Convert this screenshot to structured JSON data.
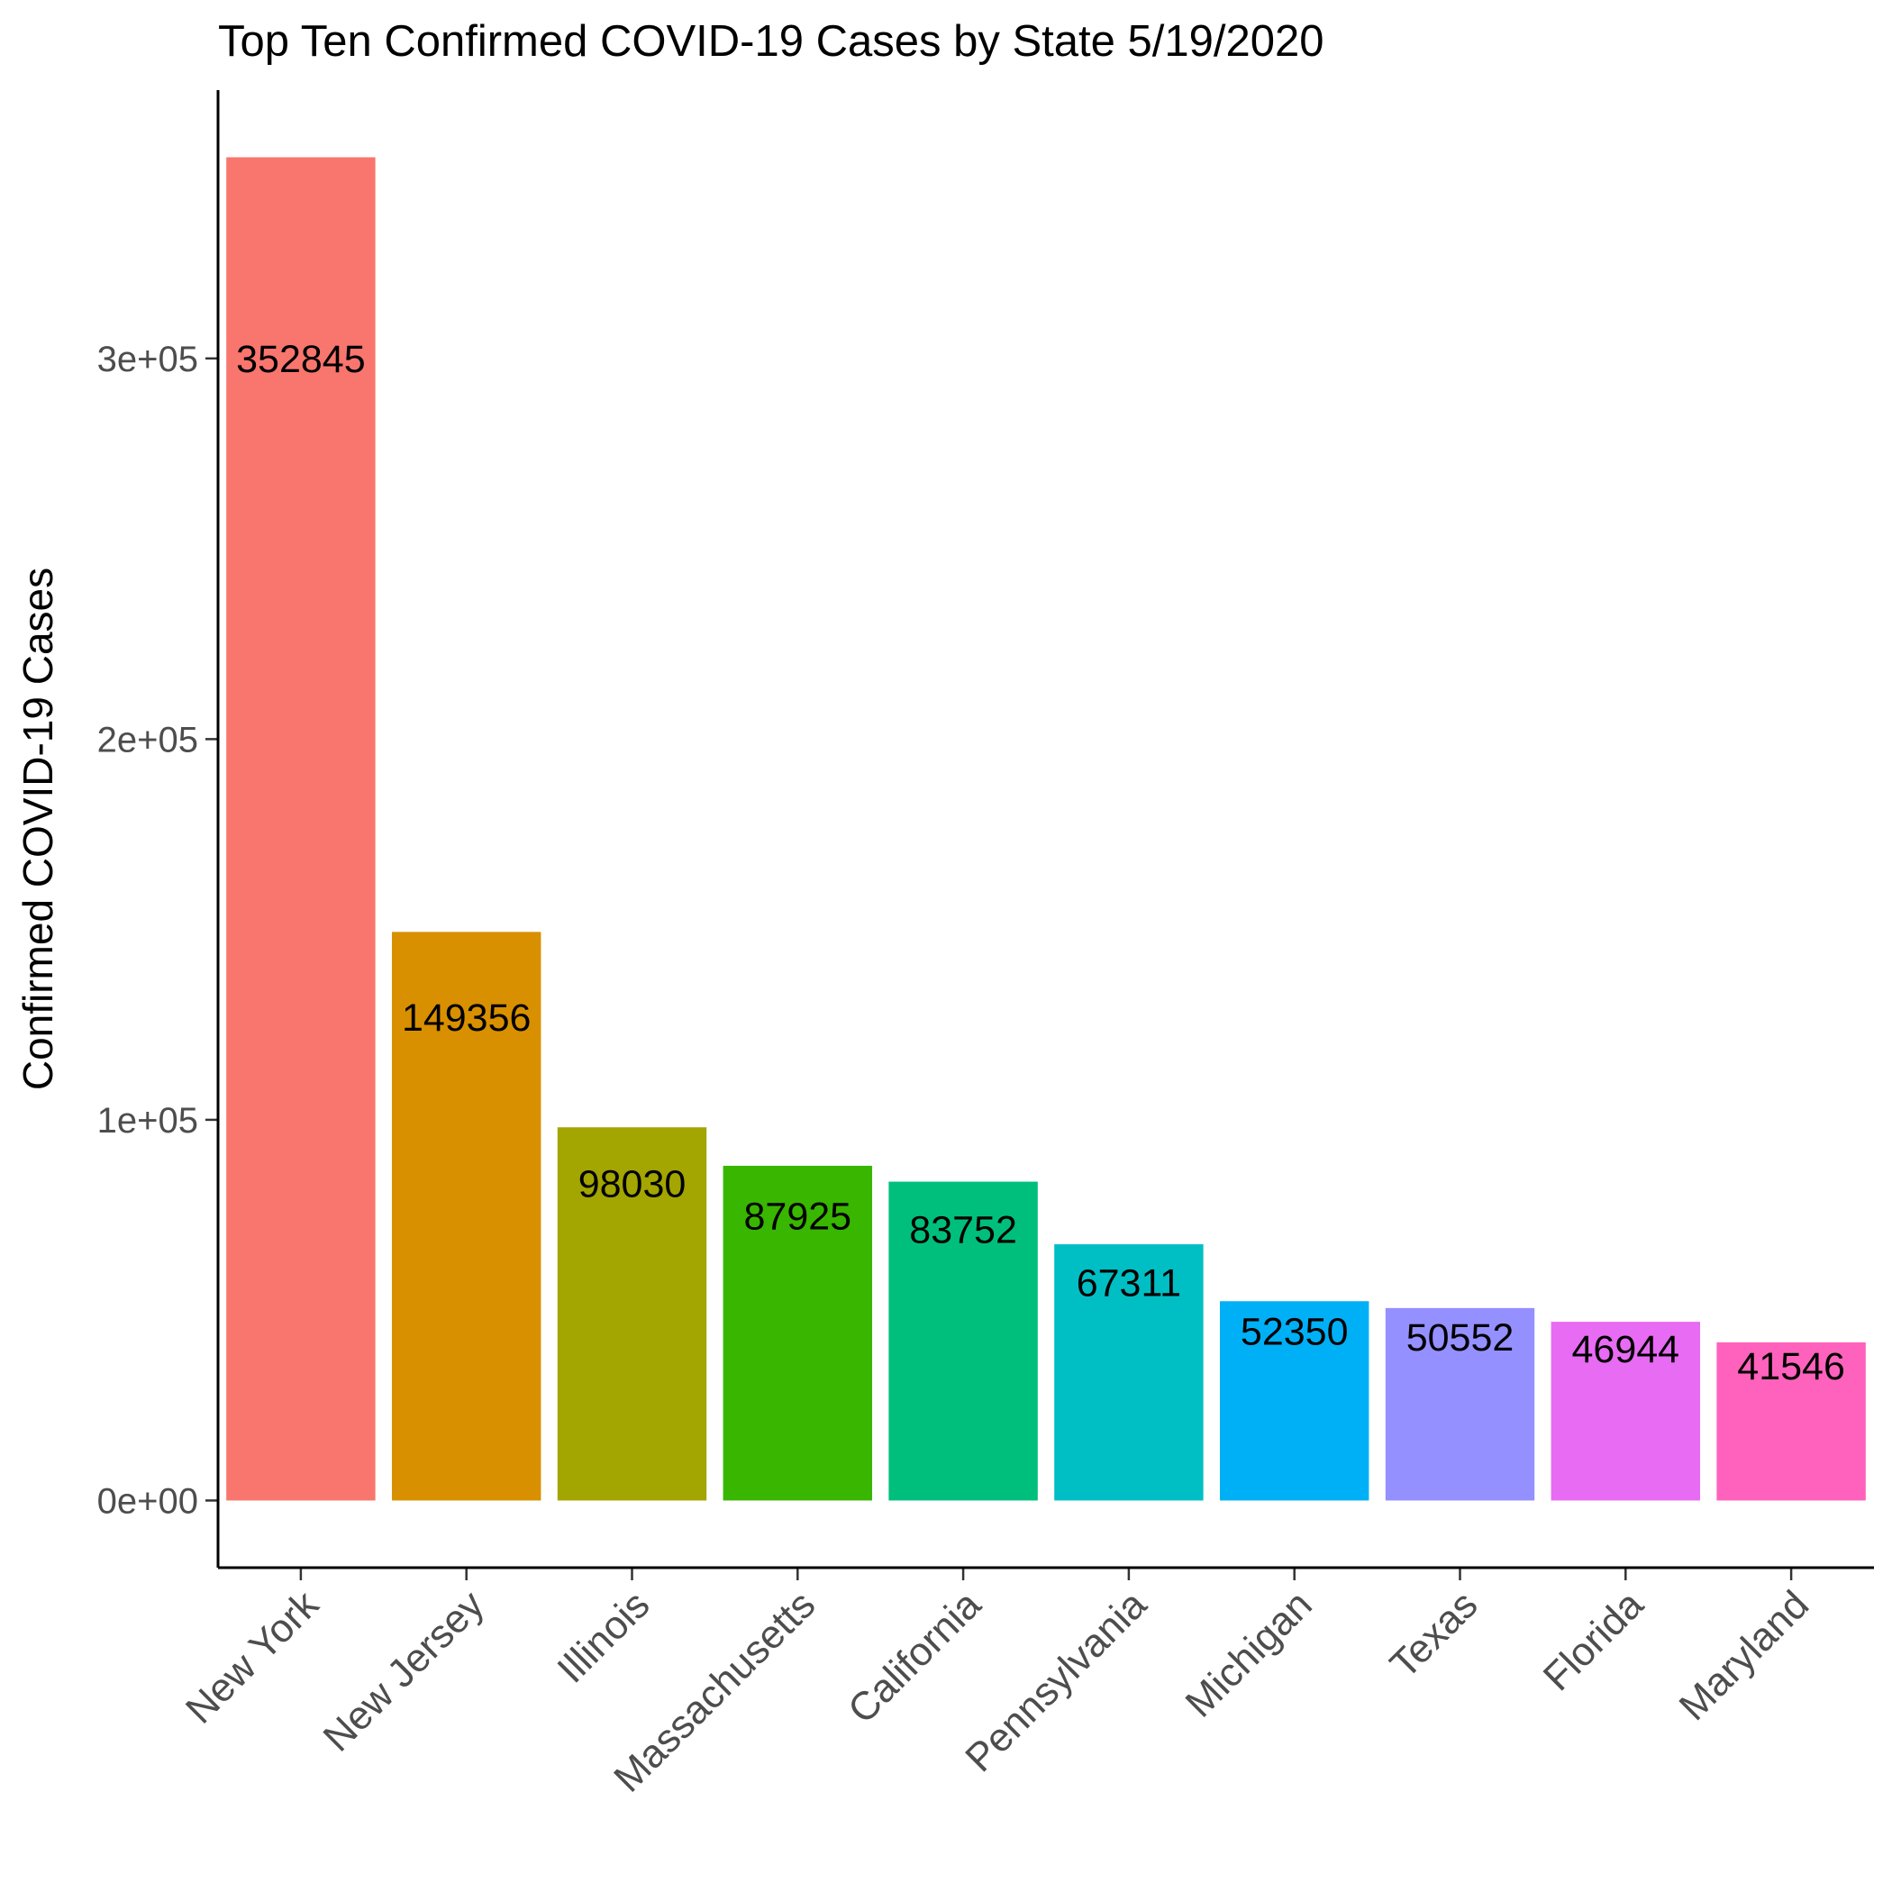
{
  "chart_data": {
    "type": "bar",
    "title": "Top Ten Confirmed COVID-19 Cases by State 5/19/2020",
    "xlabel": "",
    "ylabel": "Confirmed COVID-19 Cases",
    "categories": [
      "New York",
      "New Jersey",
      "Illinois",
      "Massachusetts",
      "California",
      "Pennsylvania",
      "Michigan",
      "Texas",
      "Florida",
      "Maryland"
    ],
    "values": [
      352845,
      149356,
      98030,
      87925,
      83752,
      67311,
      52350,
      50552,
      46944,
      41546
    ],
    "data_labels": [
      "352845",
      "149356",
      "98030",
      "87925",
      "83752",
      "67311",
      "52350",
      "50552",
      "46944",
      "41546"
    ],
    "colors": [
      "#F8766D",
      "#D89000",
      "#A3A500",
      "#39B600",
      "#00BF7D",
      "#00BFC4",
      "#00B0F6",
      "#9590FF",
      "#E76BF3",
      "#FF62BC"
    ],
    "ylim": [
      -17642,
      370487
    ],
    "yticks": [
      0,
      100000,
      200000,
      300000
    ],
    "ytick_labels": [
      "0e+00",
      "1e+05",
      "2e+05",
      "3e+05"
    ],
    "grid": false,
    "legend": "none"
  }
}
